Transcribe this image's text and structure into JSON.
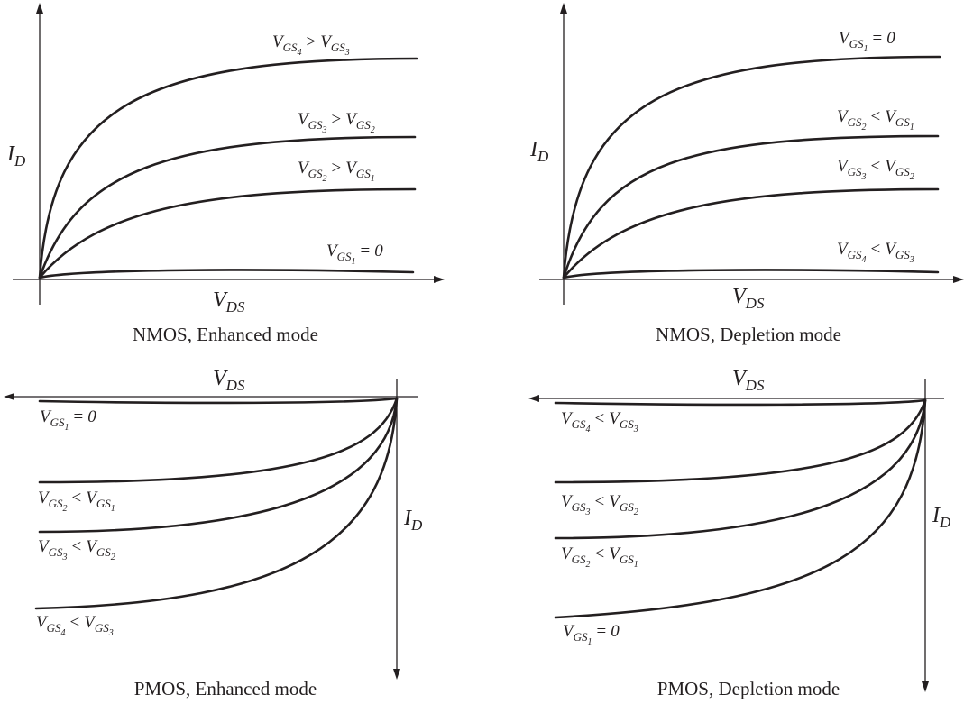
{
  "panels": [
    {
      "id": "nmos-enhanced",
      "caption": "NMOS, Enhanced mode",
      "x_axis": {
        "var": "V",
        "sub": "DS"
      },
      "y_axis": {
        "var": "I",
        "sub": "D"
      },
      "curves": [
        {
          "var": "V",
          "sub": "GS",
          "idx": "4",
          "op": ">",
          "rhs_var": "V",
          "rhs_sub": "GS",
          "rhs_idx": "3",
          "level": 4
        },
        {
          "var": "V",
          "sub": "GS",
          "idx": "3",
          "op": ">",
          "rhs_var": "V",
          "rhs_sub": "GS",
          "rhs_idx": "2",
          "level": 3
        },
        {
          "var": "V",
          "sub": "GS",
          "idx": "2",
          "op": ">",
          "rhs_var": "V",
          "rhs_sub": "GS",
          "rhs_idx": "1",
          "level": 2
        },
        {
          "var": "V",
          "sub": "GS",
          "idx": "1",
          "op": "=",
          "rhs_value": "0",
          "level": 1
        }
      ]
    },
    {
      "id": "nmos-depletion",
      "caption": "NMOS, Depletion mode",
      "x_axis": {
        "var": "V",
        "sub": "DS"
      },
      "y_axis": {
        "var": "I",
        "sub": "D"
      },
      "curves": [
        {
          "var": "V",
          "sub": "GS",
          "idx": "1",
          "op": "=",
          "rhs_value": "0",
          "level": 4
        },
        {
          "var": "V",
          "sub": "GS",
          "idx": "2",
          "op": "<",
          "rhs_var": "V",
          "rhs_sub": "GS",
          "rhs_idx": "1",
          "level": 3
        },
        {
          "var": "V",
          "sub": "GS",
          "idx": "3",
          "op": "<",
          "rhs_var": "V",
          "rhs_sub": "GS",
          "rhs_idx": "2",
          "level": 2
        },
        {
          "var": "V",
          "sub": "GS",
          "idx": "4",
          "op": "<",
          "rhs_var": "V",
          "rhs_sub": "GS",
          "rhs_idx": "3",
          "level": 1
        }
      ]
    },
    {
      "id": "pmos-enhanced",
      "caption": "PMOS, Enhanced mode",
      "x_axis": {
        "var": "V",
        "sub": "DS"
      },
      "y_axis": {
        "var": "I",
        "sub": "D"
      },
      "curves": [
        {
          "var": "V",
          "sub": "GS",
          "idx": "1",
          "op": "=",
          "rhs_value": "0",
          "level": 1
        },
        {
          "var": "V",
          "sub": "GS",
          "idx": "2",
          "op": "<",
          "rhs_var": "V",
          "rhs_sub": "GS",
          "rhs_idx": "1",
          "level": 2
        },
        {
          "var": "V",
          "sub": "GS",
          "idx": "3",
          "op": "<",
          "rhs_var": "V",
          "rhs_sub": "GS",
          "rhs_idx": "2",
          "level": 3
        },
        {
          "var": "V",
          "sub": "GS",
          "idx": "4",
          "op": "<",
          "rhs_var": "V",
          "rhs_sub": "GS",
          "rhs_idx": "3",
          "level": 4
        }
      ]
    },
    {
      "id": "pmos-depletion",
      "caption": "PMOS, Depletion mode",
      "x_axis": {
        "var": "V",
        "sub": "DS"
      },
      "y_axis": {
        "var": "I",
        "sub": "D"
      },
      "curves": [
        {
          "var": "V",
          "sub": "GS",
          "idx": "4",
          "op": "<",
          "rhs_var": "V",
          "rhs_sub": "GS",
          "rhs_idx": "3",
          "level": 1
        },
        {
          "var": "V",
          "sub": "GS",
          "idx": "3",
          "op": "<",
          "rhs_var": "V",
          "rhs_sub": "GS",
          "rhs_idx": "2",
          "level": 2
        },
        {
          "var": "V",
          "sub": "GS",
          "idx": "2",
          "op": "<",
          "rhs_var": "V",
          "rhs_sub": "GS",
          "rhs_idx": "1",
          "level": 3
        },
        {
          "var": "V",
          "sub": "GS",
          "idx": "1",
          "op": "=",
          "rhs_value": "0",
          "level": 4
        }
      ]
    }
  ]
}
